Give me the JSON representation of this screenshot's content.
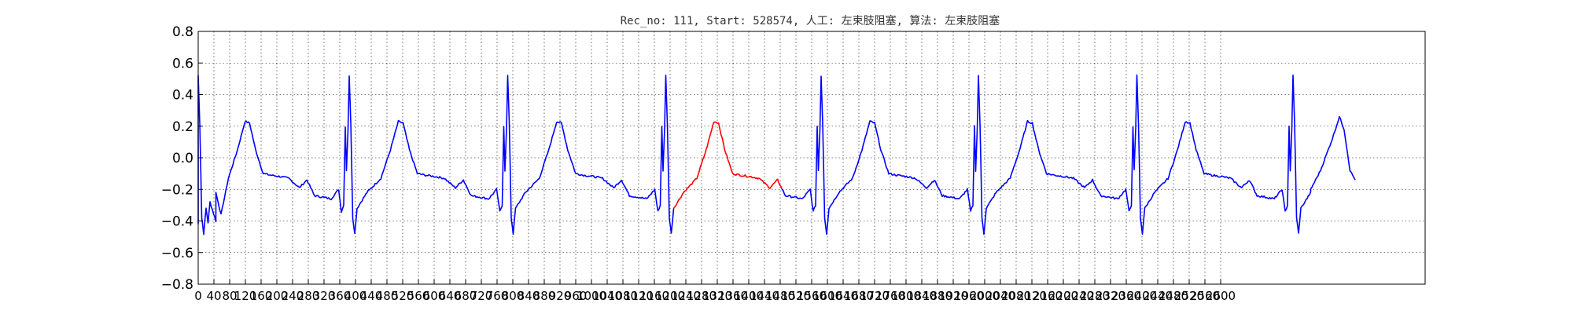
{
  "chart_data": {
    "type": "line",
    "title": "Rec_no: 111, Start: 528574, 人工: 左束肢阻塞, 算法: 左束肢阻塞",
    "xlabel": "",
    "ylabel": "",
    "xlim": [
      0,
      3120
    ],
    "ylim": [
      -0.8,
      0.8
    ],
    "yticks": [
      -0.8,
      -0.6,
      -0.4,
      -0.2,
      0.0,
      0.2,
      0.4,
      0.6,
      0.8
    ],
    "ytick_labels": [
      "−0.8",
      "−0.6",
      "−0.4",
      "−0.2",
      "0.0",
      "0.2",
      "0.4",
      "0.6",
      "0.8"
    ],
    "xticks": [
      0,
      40,
      80,
      120,
      160,
      200,
      240,
      280,
      320,
      360,
      400,
      440,
      480,
      520,
      560,
      600,
      640,
      680,
      720,
      760,
      800,
      840,
      880,
      920,
      960,
      1000,
      1040,
      1080,
      1120,
      1160,
      1200,
      1240,
      1280,
      1320,
      1360,
      1400,
      1440,
      1480,
      1520,
      1560,
      1600,
      1640,
      1680,
      1720,
      1760,
      1800,
      1840,
      1880,
      1920,
      1960,
      2000,
      2040,
      2080,
      2120,
      2160,
      2200,
      2240,
      2280,
      2320,
      2360,
      2400,
      2440,
      2480,
      2520,
      2560,
      2600
    ],
    "grid": true,
    "normal_color": "#0000ff",
    "highlight_color": "#ff0000",
    "highlight_range": [
      1207,
      1483
    ],
    "beats": [
      0,
      384,
      787,
      1189,
      1584,
      1984,
      2387,
      2784
    ],
    "qrs_shape": [
      [
        -20,
        -0.34
      ],
      [
        -14,
        -0.3
      ],
      [
        -10,
        0.2
      ],
      [
        -7,
        -0.08
      ],
      [
        -3,
        0.18
      ],
      [
        0,
        0.52
      ],
      [
        4,
        0.22
      ],
      [
        9,
        -0.38
      ],
      [
        14,
        -0.48
      ],
      [
        20,
        -0.32
      ],
      [
        30,
        -0.28
      ],
      [
        45,
        -0.22
      ]
    ],
    "first_beat_pre": [
      [
        0,
        -0.42
      ],
      [
        25,
        -0.41
      ],
      [
        45,
        -0.4
      ],
      [
        58,
        -0.36
      ]
    ],
    "last_beat_post": [
      [
        45,
        -0.2
      ],
      [
        70,
        -0.08
      ],
      [
        100,
        0.12
      ],
      [
        118,
        0.26
      ],
      [
        130,
        0.18
      ],
      [
        145,
        -0.08
      ],
      [
        158,
        -0.14
      ]
    ]
  }
}
